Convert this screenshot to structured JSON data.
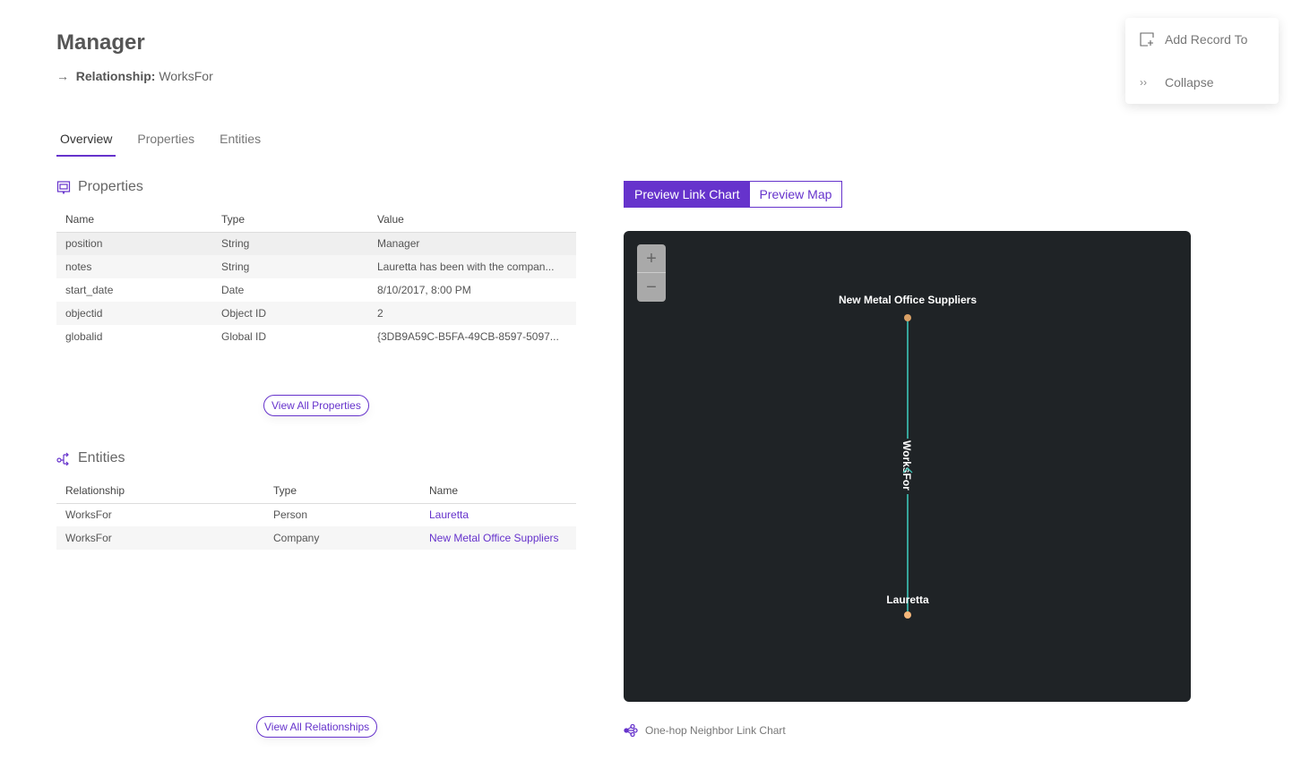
{
  "header": {
    "title": "Manager",
    "relationship_label": "Relationship:",
    "relationship_value": "WorksFor"
  },
  "tabs": [
    {
      "label": "Overview",
      "active": true
    },
    {
      "label": "Properties"
    },
    {
      "label": "Entities"
    }
  ],
  "properties": {
    "heading": "Properties",
    "columns": [
      "Name",
      "Type",
      "Value"
    ],
    "rows": [
      [
        "position",
        "String",
        "Manager"
      ],
      [
        "notes",
        "String",
        "Lauretta has been with the compan..."
      ],
      [
        "start_date",
        "Date",
        "8/10/2017, 8:00 PM"
      ],
      [
        "objectid",
        "Object ID",
        "2"
      ],
      [
        "globalid",
        "Global ID",
        "{3DB9A59C-B5FA-49CB-8597-5097..."
      ]
    ],
    "view_all": "View All Properties"
  },
  "entities": {
    "heading": "Entities",
    "columns": [
      "Relationship",
      "Type",
      "Name"
    ],
    "rows": [
      [
        "WorksFor",
        "Person",
        "Lauretta"
      ],
      [
        "WorksFor",
        "Company",
        "New Metal Office Suppliers"
      ]
    ],
    "view_all": "View All Relationships"
  },
  "preview": {
    "link_chart": "Preview Link Chart",
    "map": "Preview Map",
    "active": "link_chart",
    "zoom_in": "+",
    "zoom_out": "−",
    "nodes": {
      "top": "New Metal Office Suppliers",
      "bottom": "Lauretta"
    },
    "edge": "WorksFor",
    "edge_color": "#3fd0c0",
    "node_color_top": "#d9a066",
    "node_color_bottom": "#f5b77a",
    "caption": "One-hop Neighbor Link Chart"
  },
  "menu": {
    "add_record": "Add Record To",
    "collapse": "Collapse"
  },
  "colors": {
    "accent": "#6633cc",
    "chart_bg": "#1f2326"
  }
}
